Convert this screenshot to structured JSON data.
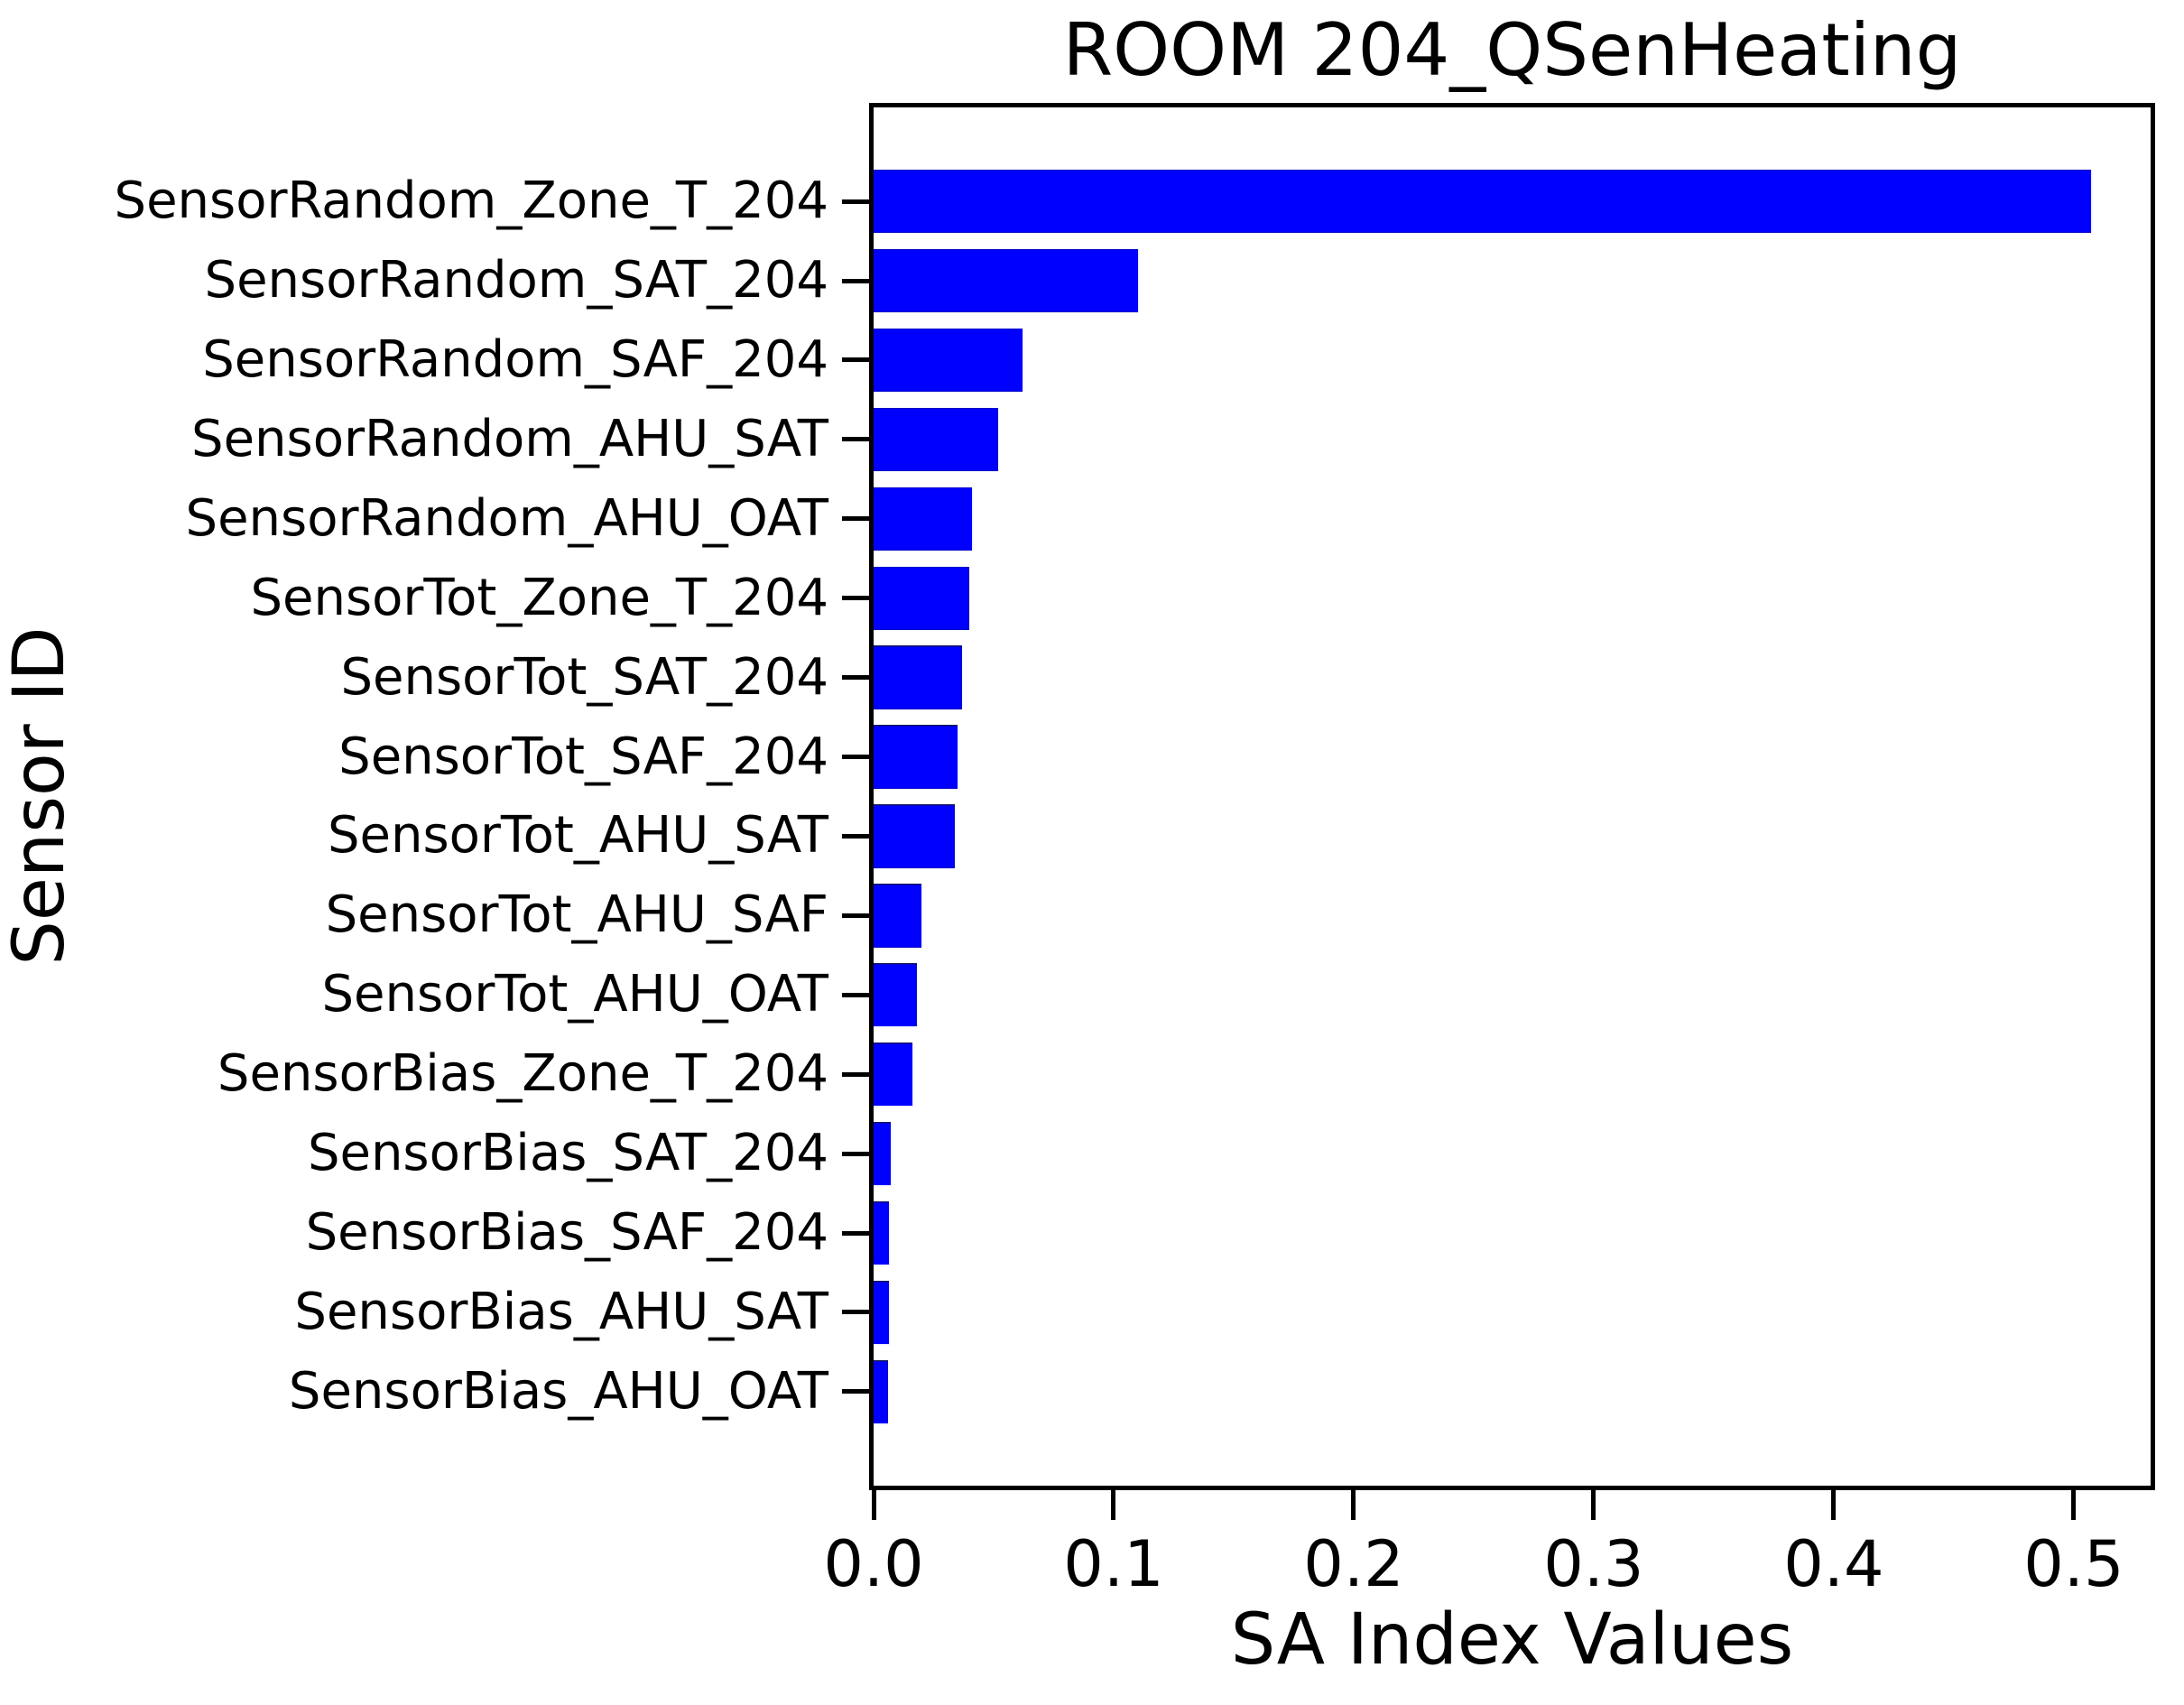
{
  "chart_data": {
    "type": "bar",
    "orientation": "horizontal",
    "title": "ROOM 204_QSenHeating",
    "xlabel": "SA Index Values",
    "ylabel": "Sensor ID",
    "categories": [
      "SensorRandom_Zone_T_204",
      "SensorRandom_SAT_204",
      "SensorRandom_SAF_204",
      "SensorRandom_AHU_SAT",
      "SensorRandom_AHU_OAT",
      "SensorTot_Zone_T_204",
      "SensorTot_SAT_204",
      "SensorTot_SAF_204",
      "SensorTot_AHU_SAT",
      "SensorTot_AHU_SAF",
      "SensorTot_AHU_OAT",
      "SensorBias_Zone_T_204",
      "SensorBias_SAT_204",
      "SensorBias_SAF_204",
      "SensorBias_AHU_SAT",
      "SensorBias_AHU_OAT"
    ],
    "values": [
      0.507,
      0.11,
      0.062,
      0.052,
      0.041,
      0.04,
      0.037,
      0.035,
      0.034,
      0.02,
      0.018,
      0.016,
      0.007,
      0.0065,
      0.0065,
      0.006
    ],
    "xlim": [
      0.0,
      0.532
    ],
    "xticks": [
      0.0,
      0.1,
      0.2,
      0.3,
      0.4,
      0.5
    ],
    "xtick_labels": [
      "0.0",
      "0.1",
      "0.2",
      "0.3",
      "0.4",
      "0.5"
    ],
    "grid": false,
    "colors": {
      "bar": "#0000ff",
      "axis": "#000000",
      "text": "#000000",
      "background": "#ffffff"
    }
  }
}
